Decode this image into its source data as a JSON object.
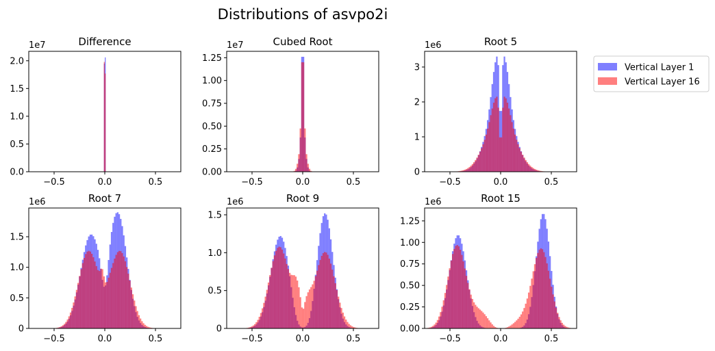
{
  "chart_data": {
    "type": "histogram",
    "title": "Distributions of asvpo2i",
    "legend": {
      "placement": "outside-right",
      "entries": [
        {
          "name": "Vertical Layer 1",
          "color": "#0000ff"
        },
        {
          "name": "Vertical Layer 16",
          "color": "#ff0000"
        }
      ]
    },
    "alpha": 0.5,
    "xlim": [
      -0.75,
      0.75
    ],
    "xticks": [
      -0.5,
      0.0,
      0.5
    ],
    "xtick_labels": [
      "−0.5",
      "0.0",
      "0.5"
    ],
    "subplots": [
      {
        "title": "Difference",
        "offset_text": "1e7",
        "ylim": [
          0,
          2.17
        ],
        "yticks": [
          0,
          0.5,
          1.0,
          1.5,
          2.0
        ],
        "ytick_labels": [
          "0.0",
          "0.5",
          "1.0",
          "1.5",
          "2.0"
        ],
        "series": [
          {
            "name": "Vertical Layer 1",
            "bins": [
              [
                -0.009,
                0.0,
                1.95
              ],
              [
                0.0,
                0.009,
                2.06
              ]
            ]
          },
          {
            "name": "Vertical Layer 16",
            "bins": [
              [
                -0.009,
                0.0,
                1.98
              ],
              [
                0.0,
                0.009,
                1.77
              ]
            ]
          }
        ]
      },
      {
        "title": "Cubed Root",
        "offset_text": "1e7",
        "ylim": [
          0,
          1.32
        ],
        "yticks": [
          0,
          0.25,
          0.5,
          0.75,
          1.0,
          1.25
        ],
        "ytick_labels": [
          "0.00",
          "0.25",
          "0.50",
          "0.75",
          "1.00",
          "1.25"
        ],
        "series": [
          {
            "name": "Vertical Layer 1",
            "mixture": {
              "components": [
                [
                  0.0,
                  0.01,
                  0.92
                ],
                [
                  0.0,
                  0.025,
                  0.35
                ]
              ]
            },
            "peak": 1.26
          },
          {
            "name": "Vertical Layer 16",
            "mixture": {
              "components": [
                [
                  0.0,
                  0.012,
                  0.85
                ],
                [
                  0.0,
                  0.03,
                  0.35
                ]
              ]
            },
            "peak": 1.2
          }
        ]
      },
      {
        "title": "Root 5",
        "offset_text": "1e6",
        "ylim": [
          0,
          3.45
        ],
        "yticks": [
          0,
          1,
          2,
          3
        ],
        "ytick_labels": [
          "0",
          "1",
          "2",
          "3"
        ],
        "series": [
          {
            "name": "Vertical Layer 1",
            "mixture": {
              "components": [
                [
                  -0.045,
                  0.045,
                  1.3
                ],
                [
                  0.045,
                  0.045,
                  1.3
                ],
                [
                  -0.06,
                  0.11,
                  1.35
                ],
                [
                  0.06,
                  0.11,
                  1.35
                ]
              ]
            },
            "dip": [
              0.0,
              0.012,
              0.6
            ],
            "peak": 3.3
          },
          {
            "name": "Vertical Layer 16",
            "mixture": {
              "components": [
                [
                  -0.05,
                  0.05,
                  0.75
                ],
                [
                  0.05,
                  0.05,
                  0.75
                ],
                [
                  -0.07,
                  0.12,
                  1.2
                ],
                [
                  0.07,
                  0.12,
                  1.2
                ]
              ]
            },
            "dip": [
              0.0,
              0.014,
              0.65
            ],
            "peak": 2.15
          }
        ]
      },
      {
        "title": "Root 7",
        "offset_text": "1e6",
        "ylim": [
          0,
          1.97
        ],
        "yticks": [
          0,
          0.5,
          1.0,
          1.5
        ],
        "ytick_labels": [
          "0",
          "0.5",
          "1.0",
          "1.5"
        ],
        "series": [
          {
            "name": "Vertical Layer 1",
            "mixture": {
              "components": [
                [
                  -0.14,
                  0.1,
                  1.55
                ],
                [
                  0.13,
                  0.09,
                  1.9
                ]
              ]
            },
            "dip": [
              0.0,
              0.03,
              0.45
            ],
            "peak": 1.9
          },
          {
            "name": "Vertical Layer 16",
            "mixture": {
              "components": [
                [
                  -0.16,
                  0.1,
                  1.25
                ],
                [
                  0.15,
                  0.1,
                  1.25
                ],
                [
                  -0.02,
                  0.02,
                  0.28
                ]
              ]
            },
            "dip": [
              0.0,
              0.02,
              0.15
            ],
            "peak": 1.27
          }
        ]
      },
      {
        "title": "Root 9",
        "offset_text": "1e6",
        "ylim": [
          0,
          1.59
        ],
        "yticks": [
          0,
          0.5,
          1.0,
          1.5
        ],
        "ytick_labels": [
          "0",
          "0.5",
          "1.0",
          "1.5"
        ],
        "series": [
          {
            "name": "Vertical Layer 1",
            "mixture": {
              "components": [
                [
                  -0.22,
                  0.095,
                  1.22
                ],
                [
                  0.22,
                  0.08,
                  1.52
                ]
              ]
            },
            "dip": [
              0.0,
              0.06,
              0.9
            ],
            "peak": 1.52
          },
          {
            "name": "Vertical Layer 16",
            "mixture": {
              "components": [
                [
                  -0.23,
                  0.1,
                  1.07
                ],
                [
                  0.22,
                  0.1,
                  1.0
                ],
                [
                  -0.06,
                  0.04,
                  0.38
                ],
                [
                  0.05,
                  0.04,
                  0.2
                ]
              ]
            },
            "dip": [
              0.0,
              0.015,
              0.35
            ],
            "peak": 1.08
          }
        ]
      },
      {
        "title": "Root 15",
        "offset_text": "1e6",
        "ylim": [
          0,
          1.4
        ],
        "yticks": [
          0,
          0.25,
          0.5,
          0.75,
          1.0,
          1.25
        ],
        "ytick_labels": [
          "0.00",
          "0.25",
          "0.50",
          "0.75",
          "1.00",
          "1.25"
        ],
        "series": [
          {
            "name": "Vertical Layer 1",
            "mixture": {
              "components": [
                [
                  -0.42,
                  0.085,
                  1.08
                ],
                [
                  0.42,
                  0.07,
                  1.33
                ]
              ]
            },
            "dip": [
              0.0,
              0.1,
              1.0
            ],
            "peak": 1.33
          },
          {
            "name": "Vertical Layer 16",
            "mixture": {
              "components": [
                [
                  -0.43,
                  0.09,
                  0.97
                ],
                [
                  0.4,
                  0.09,
                  0.93
                ],
                [
                  -0.2,
                  0.08,
                  0.18
                ],
                [
                  0.2,
                  0.08,
                  0.08
                ]
              ]
            },
            "dip": [
              0.0,
              0.05,
              0.9
            ],
            "peak": 0.97
          }
        ]
      }
    ]
  }
}
